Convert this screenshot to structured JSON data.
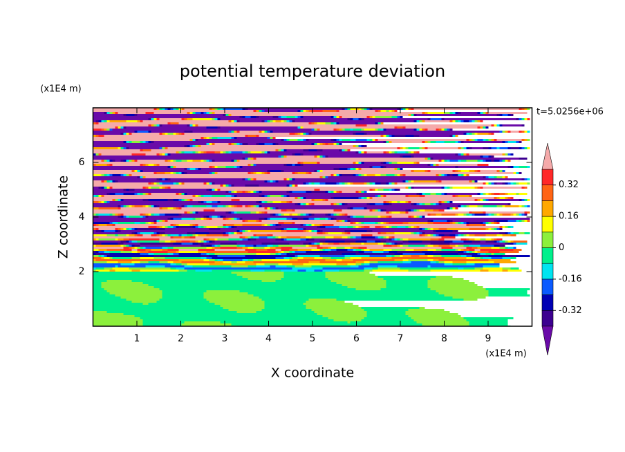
{
  "chart_data": {
    "type": "contour",
    "title": "potential temperature deviation",
    "xlabel": "X coordinate",
    "ylabel": "Z coordinate",
    "x_unit": "(x1E4 m)",
    "y_unit": "(x1E4 m)",
    "annotation": "t=5.0256e+06",
    "xlim": [
      0,
      10
    ],
    "xticks": [
      1,
      2,
      3,
      4,
      5,
      6,
      7,
      8,
      9
    ],
    "ylim": [
      0,
      8
    ],
    "yticks": [
      2,
      4,
      6
    ],
    "colorbar": {
      "levels": [
        -0.4,
        -0.32,
        -0.24,
        -0.16,
        -0.08,
        0,
        0.08,
        0.16,
        0.24,
        0.32,
        0.4
      ],
      "colors": [
        "#6a0aa8",
        "#3c0090",
        "#0000b4",
        "#0a5aff",
        "#00e4f0",
        "#00f08c",
        "#8cf03c",
        "#ffff00",
        "#ffa800",
        "#ff6414",
        "#ff2828",
        "#f5aaaa"
      ],
      "ticks": [
        -0.32,
        -0.16,
        0,
        0.16,
        0.32
      ]
    }
  }
}
